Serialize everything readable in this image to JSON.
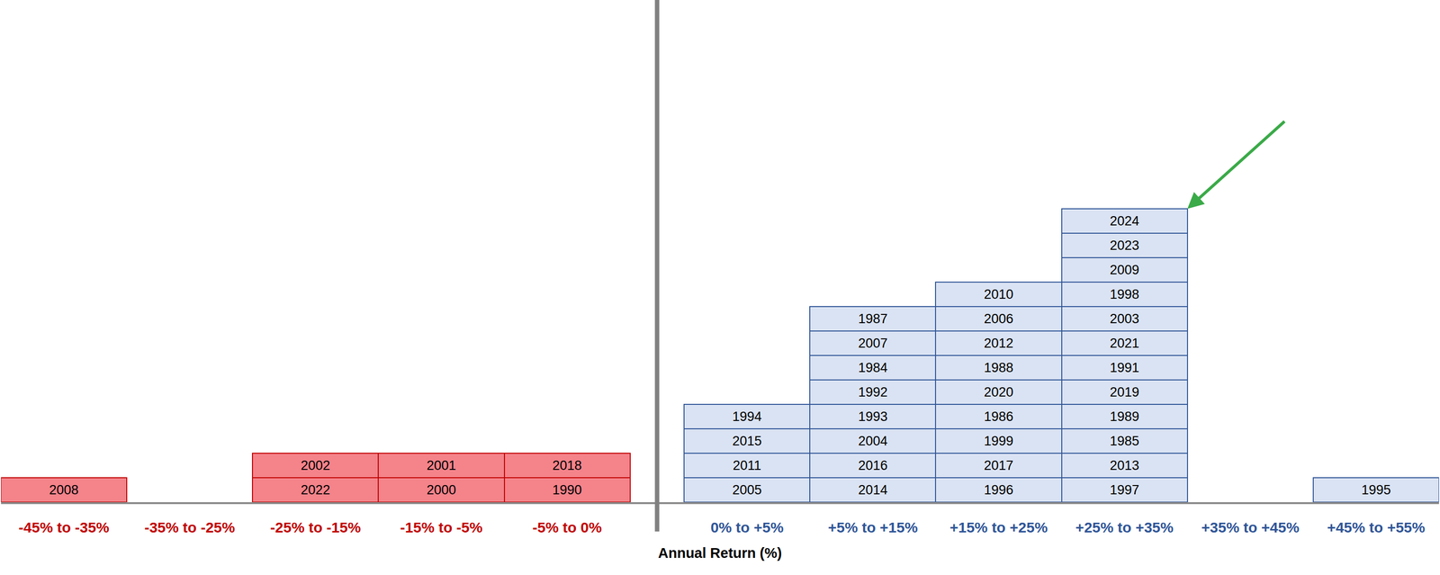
{
  "chart_data": {
    "type": "bar",
    "x_label": "Annual Return (%)",
    "categories": [
      "-45% to -35%",
      "-35% to -25%",
      "-25% to -15%",
      "-15% to -5%",
      "-5% to 0%",
      "0% to +5%",
      "+5% to +15%",
      "+15% to +25%",
      "+25% to +35%",
      "+35% to +45%",
      "+45% to +55%"
    ],
    "years": [
      [
        "2008"
      ],
      [],
      [
        "2022",
        "2002"
      ],
      [
        "2000",
        "2001"
      ],
      [
        "1990",
        "2018"
      ],
      [
        "2005",
        "2011",
        "2015",
        "1994"
      ],
      [
        "2014",
        "2016",
        "2004",
        "1993",
        "1992",
        "1984",
        "2007",
        "1987"
      ],
      [
        "1996",
        "2017",
        "1999",
        "1986",
        "2020",
        "1988",
        "2012",
        "2006",
        "2010"
      ],
      [
        "1997",
        "2013",
        "1985",
        "1989",
        "2019",
        "1991",
        "2021",
        "2003",
        "1998",
        "2009",
        "2023",
        "2024"
      ],
      [],
      [
        "1995"
      ]
    ],
    "colors": [
      "#f4838a",
      "#f4838a",
      "#f4838a",
      "#f4838a",
      "#f4838a",
      "#dae3f3",
      "#dae3f3",
      "#dae3f3",
      "#dae3f3",
      "#dae3f3",
      "#dae3f3"
    ],
    "ylim": [
      0,
      20
    ],
    "tick_labels": "x",
    "stacked": true,
    "data_labels": true
  }
}
